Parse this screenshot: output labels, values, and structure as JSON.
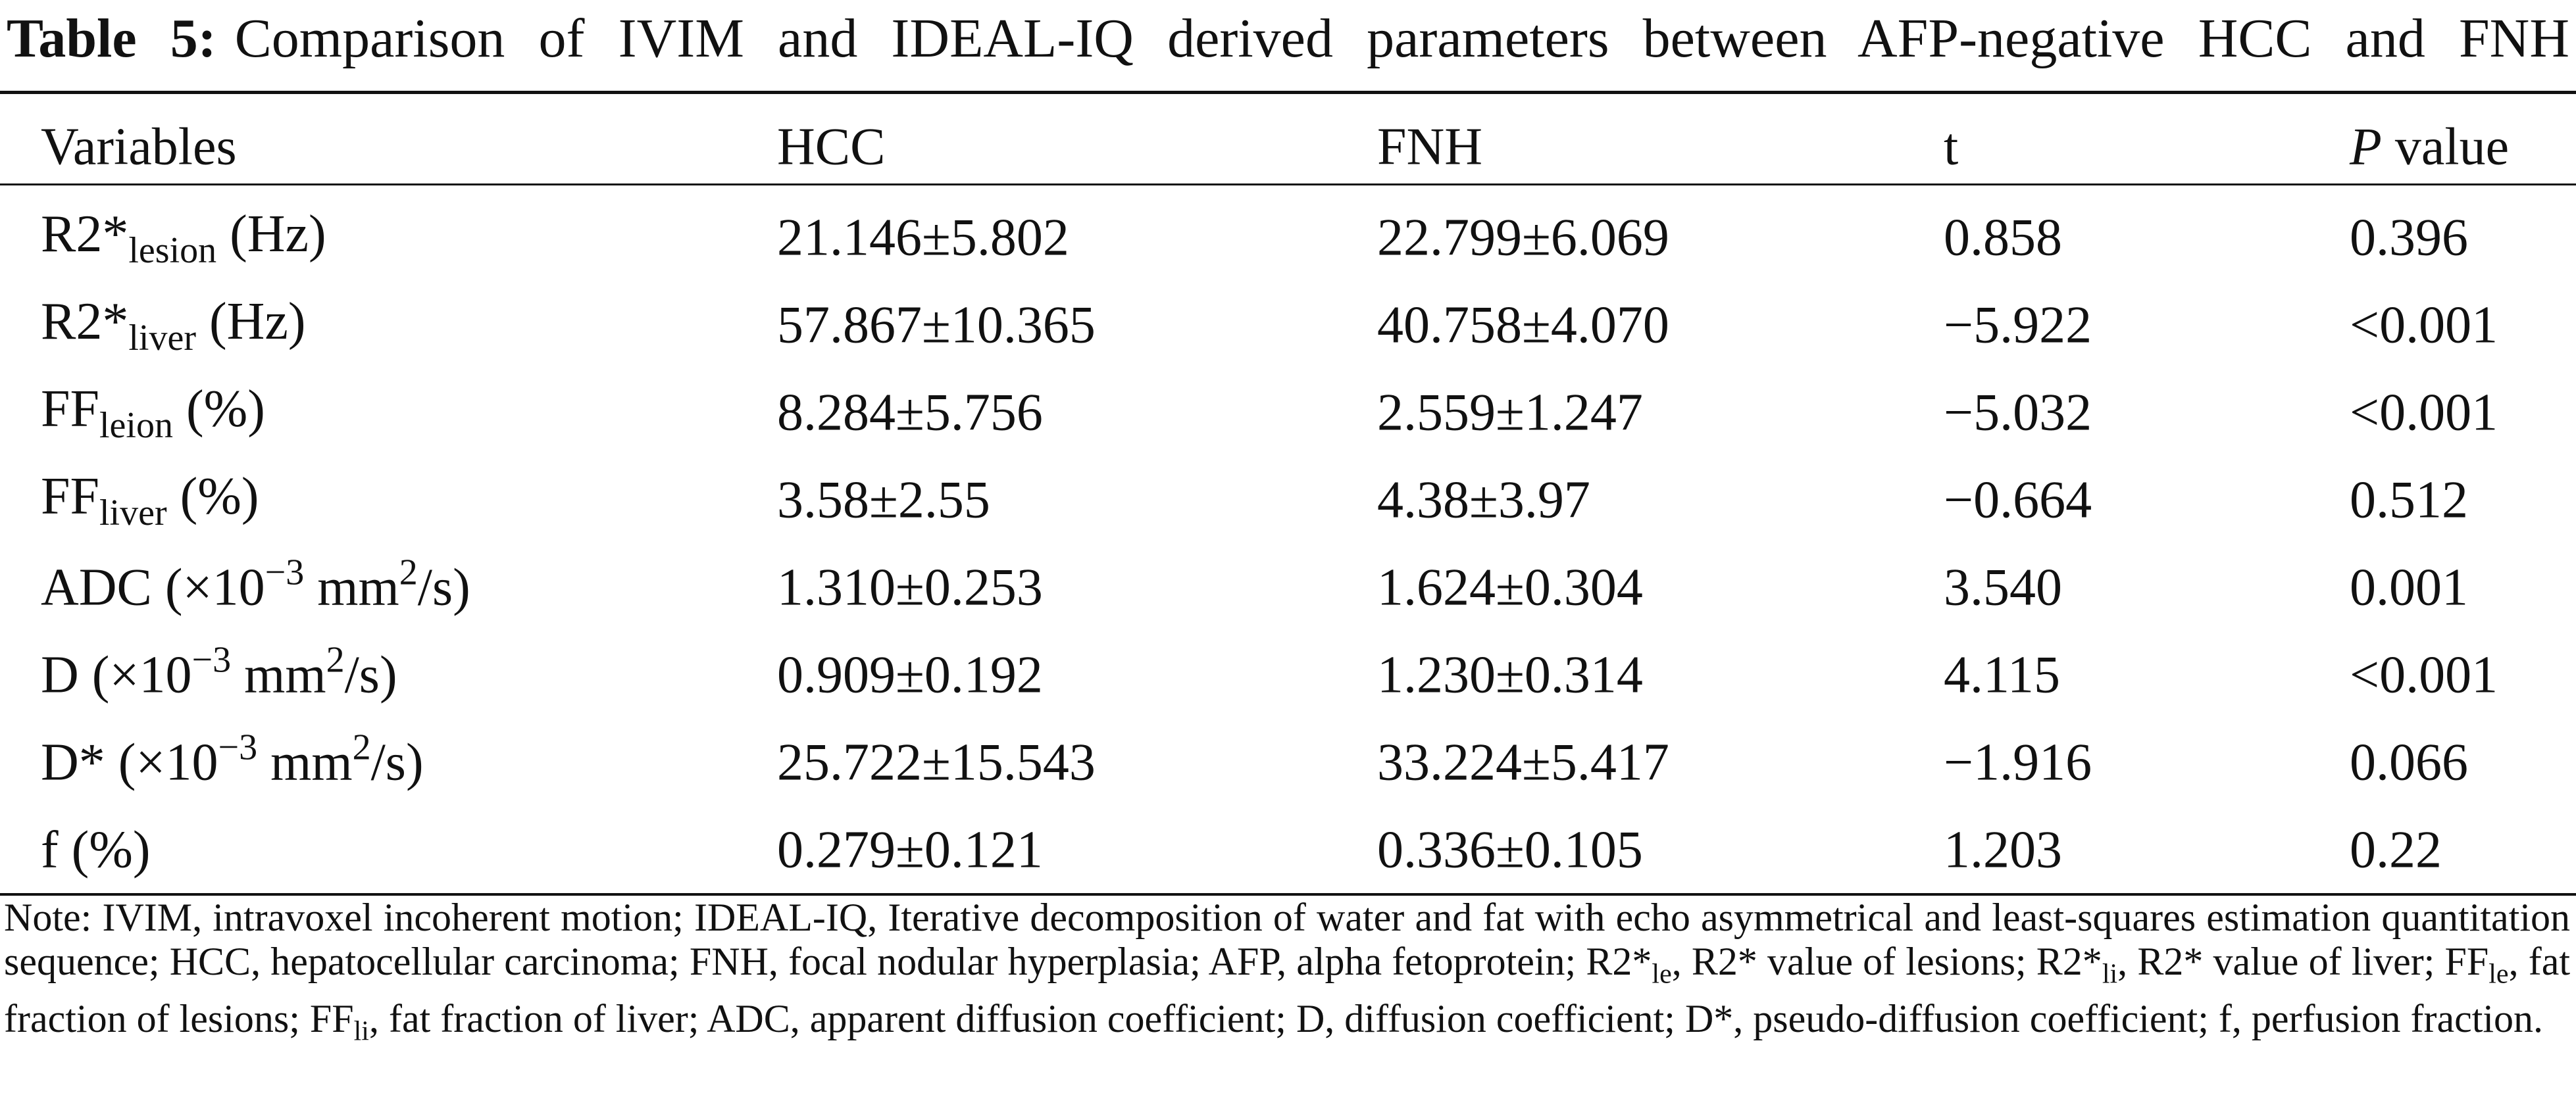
{
  "table": {
    "label": "Table 5:",
    "title": "Comparison of IVIM and IDEAL-IQ derived parameters between AFP-negative HCC and FNH",
    "header": [
      "Variables",
      "HCC",
      "FNH",
      "t",
      [
        {
          "italic": "P"
        },
        {
          "text": " value"
        }
      ]
    ],
    "rows": [
      [
        [
          {
            "text": "R2*"
          },
          {
            "sub": "lesion"
          },
          {
            "text": " (Hz)"
          }
        ],
        "21.146±5.802",
        "22.799±6.069",
        "0.858",
        "0.396"
      ],
      [
        [
          {
            "text": "R2*"
          },
          {
            "sub": "liver"
          },
          {
            "text": " (Hz)"
          }
        ],
        "57.867±10.365",
        "40.758±4.070",
        "−5.922",
        "<0.001"
      ],
      [
        [
          {
            "text": "FF"
          },
          {
            "sub": "leion"
          },
          {
            "text": " (%)"
          }
        ],
        "8.284±5.756",
        "2.559±1.247",
        "−5.032",
        "<0.001"
      ],
      [
        [
          {
            "text": "FF"
          },
          {
            "sub": "liver"
          },
          {
            "text": " (%)"
          }
        ],
        "3.58±2.55",
        "4.38±3.97",
        "−0.664",
        "0.512"
      ],
      [
        [
          {
            "text": "ADC (×10"
          },
          {
            "sup": "−3"
          },
          {
            "text": " mm"
          },
          {
            "sup": "2"
          },
          {
            "text": "/s)"
          }
        ],
        "1.310±0.253",
        "1.624±0.304",
        "3.540",
        "0.001"
      ],
      [
        [
          {
            "text": "D (×10"
          },
          {
            "sup": "−3"
          },
          {
            "text": " mm"
          },
          {
            "sup": "2"
          },
          {
            "text": "/s)"
          }
        ],
        "0.909±0.192",
        "1.230±0.314",
        "4.115",
        "<0.001"
      ],
      [
        [
          {
            "text": "D* (×10"
          },
          {
            "sup": "−3"
          },
          {
            "text": " mm"
          },
          {
            "sup": "2"
          },
          {
            "text": "/s)"
          }
        ],
        "25.722±15.543",
        "33.224±5.417",
        "−1.916",
        "0.066"
      ],
      [
        [
          {
            "text": "f (%)"
          }
        ],
        "0.279±0.121",
        "0.336±0.105",
        "1.203",
        "0.22"
      ]
    ],
    "note": [
      {
        "text": "Note: IVIM, intravoxel incoherent motion; IDEAL-IQ, Iterative decomposition of water and fat with echo asymmetrical and least-squares estimation quantitation sequence; HCC, hepatocellular carcinoma; FNH, focal nodular hyperplasia; AFP, alpha fetoprotein; R2*"
      },
      {
        "sub": "le"
      },
      {
        "text": ", R2* value of lesions; R2*"
      },
      {
        "sub": "li"
      },
      {
        "text": ", R2* value of liver; FF"
      },
      {
        "sub": "le"
      },
      {
        "text": ", fat fraction of lesions; FF"
      },
      {
        "sub": "li"
      },
      {
        "text": ", fat fraction of liver; ADC, apparent diffusion coefficient; D, diffusion coefficient; D*, pseudo-diffusion coefficient; f, perfusion fraction."
      }
    ]
  }
}
